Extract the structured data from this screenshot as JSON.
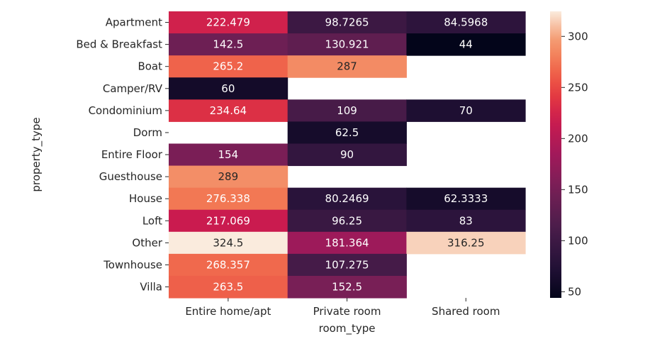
{
  "chart_data": {
    "type": "heatmap",
    "title": "",
    "xlabel": "room_type",
    "ylabel": "property_type",
    "x_categories": [
      "Entire home/apt",
      "Private room",
      "Shared room"
    ],
    "y_categories": [
      "Apartment",
      "Bed & Breakfast",
      "Boat",
      "Camper/RV",
      "Condominium",
      "Dorm",
      "Entire Floor",
      "Guesthouse",
      "House",
      "Loft",
      "Other",
      "Townhouse",
      "Villa"
    ],
    "values": [
      [
        222.479,
        98.7265,
        84.5968
      ],
      [
        142.5,
        130.921,
        44
      ],
      [
        265.2,
        287,
        null
      ],
      [
        60,
        null,
        null
      ],
      [
        234.64,
        109,
        70
      ],
      [
        null,
        62.5,
        null
      ],
      [
        154,
        90,
        null
      ],
      [
        289,
        null,
        null
      ],
      [
        276.338,
        80.2469,
        62.3333
      ],
      [
        217.069,
        96.25,
        83
      ],
      [
        324.5,
        181.364,
        316.25
      ],
      [
        268.357,
        107.275,
        null
      ],
      [
        263.5,
        152.5,
        null
      ]
    ],
    "value_labels": [
      [
        "222.479",
        "98.7265",
        "84.5968"
      ],
      [
        "142.5",
        "130.921",
        "44"
      ],
      [
        "265.2",
        "287",
        ""
      ],
      [
        "60",
        "",
        ""
      ],
      [
        "234.64",
        "109",
        "70"
      ],
      [
        "",
        "62.5",
        ""
      ],
      [
        "154",
        "90",
        ""
      ],
      [
        "289",
        "",
        ""
      ],
      [
        "276.338",
        "80.2469",
        "62.3333"
      ],
      [
        "217.069",
        "96.25",
        "83"
      ],
      [
        "324.5",
        "181.364",
        "316.25"
      ],
      [
        "268.357",
        "107.275",
        ""
      ],
      [
        "263.5",
        "152.5",
        ""
      ]
    ],
    "colorbar": {
      "range": [
        44,
        324.5
      ],
      "ticks": [
        50,
        100,
        150,
        200,
        250,
        300
      ],
      "tick_labels": [
        "50",
        "100",
        "150",
        "200",
        "250",
        "300"
      ],
      "colormap": "rocket"
    }
  }
}
